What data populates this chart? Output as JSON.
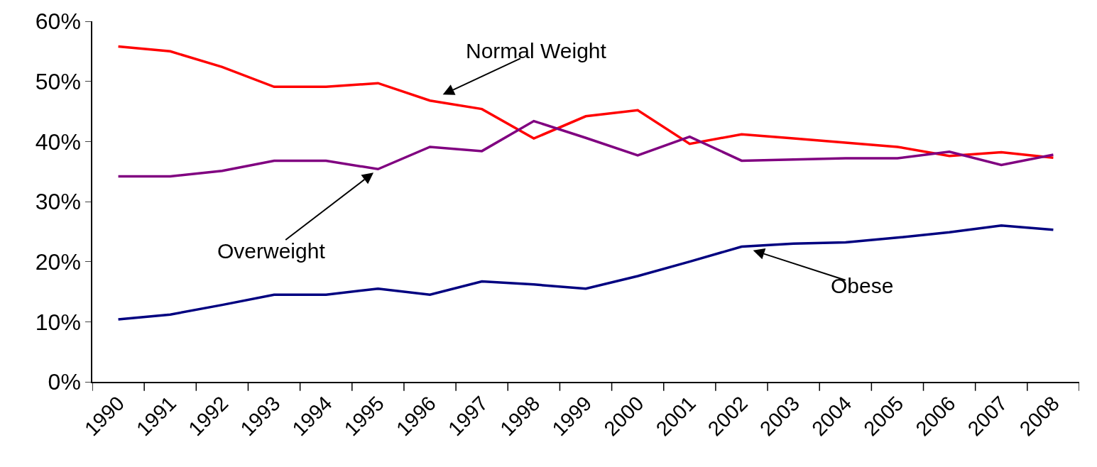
{
  "chart_data": {
    "type": "line",
    "categories": [
      "1990",
      "1991",
      "1992",
      "1993",
      "1994",
      "1995",
      "1996",
      "1997",
      "1998",
      "1999",
      "2000",
      "2001",
      "2002",
      "2003",
      "2004",
      "2005",
      "2006",
      "2007",
      "2008"
    ],
    "series": [
      {
        "name": "Normal Weight",
        "color": "#ff0000",
        "values": [
          55.8,
          55.0,
          52.4,
          49.1,
          49.1,
          49.7,
          46.8,
          45.4,
          40.5,
          44.2,
          45.2,
          39.6,
          41.2,
          40.5,
          39.8,
          39.1,
          37.6,
          38.2,
          37.3
        ]
      },
      {
        "name": "Overweight",
        "color": "#800080",
        "values": [
          34.2,
          34.2,
          35.1,
          36.8,
          36.8,
          35.4,
          39.1,
          38.4,
          43.4,
          40.6,
          37.7,
          40.8,
          36.8,
          37.0,
          37.2,
          37.2,
          38.3,
          36.1,
          37.8
        ]
      },
      {
        "name": "Obese",
        "color": "#000080",
        "values": [
          10.4,
          11.2,
          12.8,
          14.5,
          14.5,
          15.5,
          14.5,
          16.7,
          16.2,
          15.5,
          17.6,
          20.0,
          22.5,
          23.0,
          23.2,
          24.0,
          24.9,
          26.0,
          25.3
        ]
      }
    ],
    "ylim": [
      0,
      60
    ],
    "yticks": [
      {
        "value": 0,
        "label": "0%"
      },
      {
        "value": 10,
        "label": "10%"
      },
      {
        "value": 20,
        "label": "20%"
      },
      {
        "value": 30,
        "label": "30%"
      },
      {
        "value": 40,
        "label": "40%"
      },
      {
        "value": 50,
        "label": "50%"
      },
      {
        "value": 60,
        "label": "60%"
      }
    ],
    "marker": "none",
    "line_style": "solid",
    "legend": false,
    "grid": false
  }
}
